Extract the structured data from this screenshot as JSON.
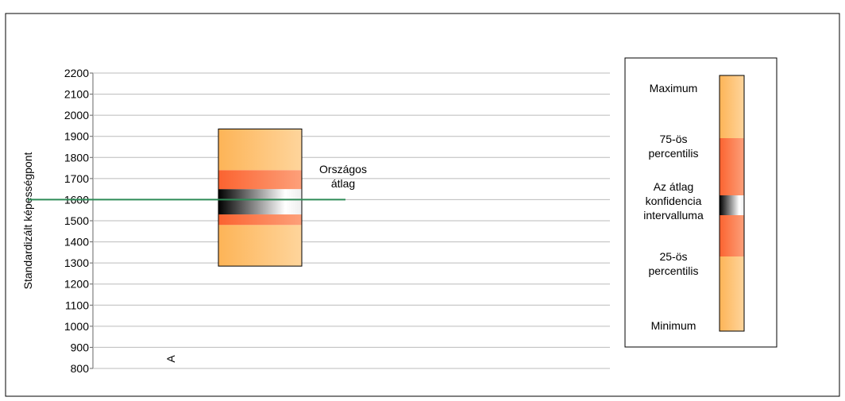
{
  "chart_data": {
    "type": "box",
    "y_label": "Standardizált képességpont",
    "categories": [
      "A"
    ],
    "ylim": [
      800,
      2200
    ],
    "yticks": [
      800,
      900,
      1000,
      1100,
      1200,
      1300,
      1400,
      1500,
      1600,
      1700,
      1800,
      1900,
      2000,
      2100,
      2200
    ],
    "grid": true,
    "series": [
      {
        "min": 1285,
        "q1": 1480,
        "ci_low": 1530,
        "ci_high": 1650,
        "q3": 1740,
        "max": 1935
      }
    ],
    "reference": {
      "value": 1600,
      "label": [
        "Országos",
        "átlag"
      ],
      "color": "#2e8b57"
    },
    "legend": {
      "maximum": [
        "Maximum"
      ],
      "p75": [
        "75-ös",
        "percentilis"
      ],
      "ci": [
        "Az átlag",
        "konfidencia",
        "intervalluma"
      ],
      "p25": [
        "25-ös",
        "percentilis"
      ],
      "minimum": [
        "Minimum"
      ]
    }
  }
}
